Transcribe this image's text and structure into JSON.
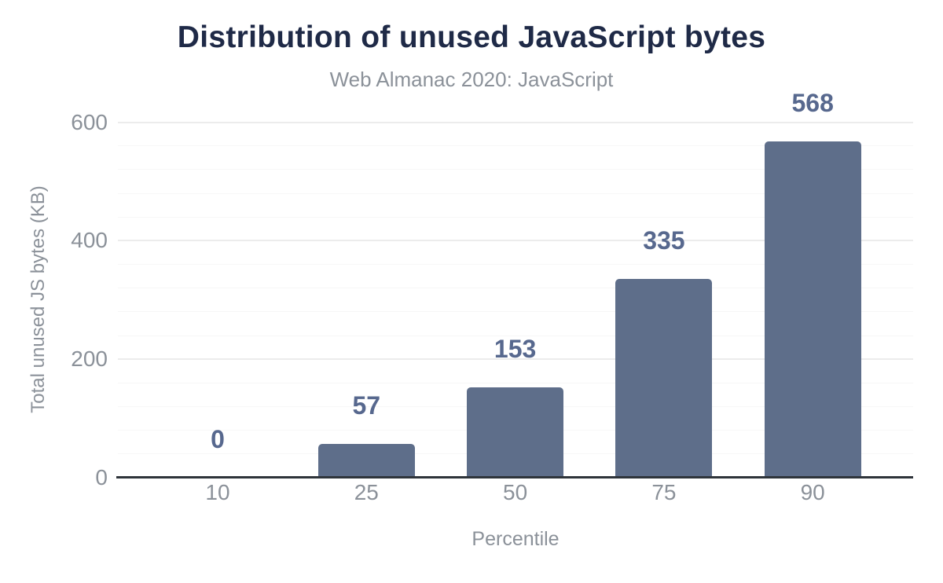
{
  "chart_data": {
    "type": "bar",
    "title": "Distribution of unused JavaScript bytes",
    "subtitle": "Web Almanac 2020: JavaScript",
    "xlabel": "Percentile",
    "ylabel": "Total unused JS bytes (KB)",
    "categories": [
      "10",
      "25",
      "50",
      "75",
      "90"
    ],
    "values": [
      0,
      57,
      153,
      335,
      568
    ],
    "bar_labels": [
      "0",
      "57",
      "153",
      "335",
      "568"
    ],
    "ytick_values": [
      0,
      200,
      400,
      600
    ],
    "ytick_labels": [
      "0",
      "200",
      "400",
      "600"
    ],
    "ylim": [
      0,
      600
    ],
    "minor_grid_step_kb": 40,
    "grid": "on",
    "legend": "none",
    "colors": {
      "bar": "#5e6e8a",
      "value_label": "#57688e",
      "title": "#1f2a47",
      "subtitle": "#8b9199",
      "axis_text": "#8b9199",
      "grid_major": "#ececec",
      "grid_minor": "#f7f7f7",
      "axis_line": "#2e343a",
      "background": "#ffffff"
    }
  }
}
